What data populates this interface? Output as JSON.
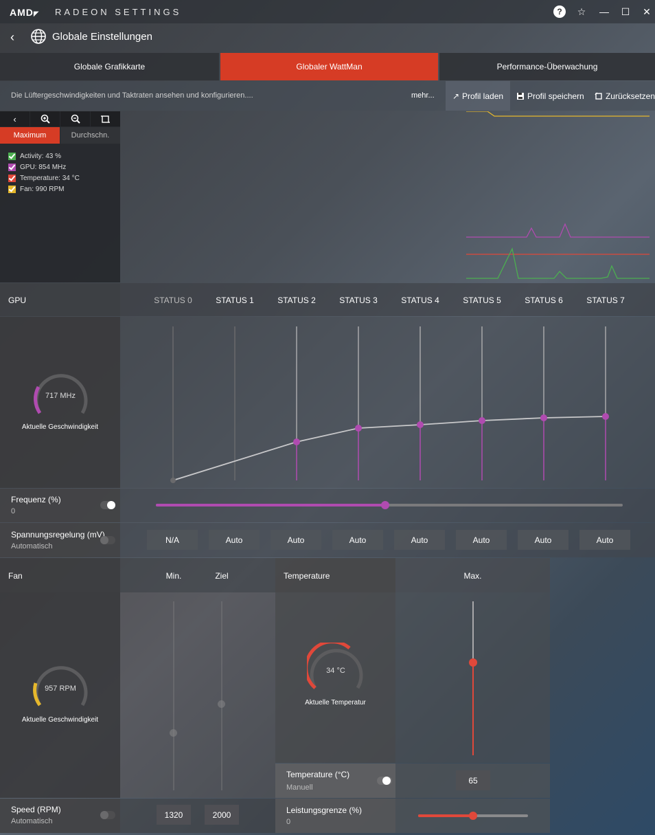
{
  "app": {
    "brand": "AMD",
    "brand_mark": "◤",
    "title": "RADEON SETTINGS"
  },
  "header": {
    "title": "Globale Einstellungen"
  },
  "tabs": [
    {
      "label": "Globale Grafikkarte",
      "active": false
    },
    {
      "label": "Globaler WattMan",
      "active": true
    },
    {
      "label": "Performance-Überwachung",
      "active": false
    }
  ],
  "toolbar": {
    "description": "Die Lüftergeschwindigkeiten und Taktraten ansehen und konfigurieren....",
    "more": "mehr...",
    "load_profile": "Profil laden",
    "save_profile": "Profil speichern",
    "reset": "Zurücksetzen"
  },
  "monitor": {
    "tab_max": "Maximum",
    "tab_avg": "Durchschn.",
    "legend": [
      {
        "label": "Activity: 43 %",
        "color": "#4caf50"
      },
      {
        "label": "GPU: 854 MHz",
        "color": "#b04bb0"
      },
      {
        "label": "Temperature: 34 °C",
        "color": "#e0483a"
      },
      {
        "label": "Fan: 990 RPM",
        "color": "#e6b82c"
      }
    ]
  },
  "gpu": {
    "label": "GPU",
    "states": [
      "STATUS 0",
      "STATUS 1",
      "STATUS 2",
      "STATUS 3",
      "STATUS 4",
      "STATUS 5",
      "STATUS 6",
      "STATUS 7"
    ],
    "gauge_value": "717 MHz",
    "gauge_caption": "Aktuelle Geschwindigkeit",
    "frequency_label": "Frequenz (%)",
    "frequency_value": "0",
    "voltage_label": "Spannungsregelung (mV)",
    "voltage_mode": "Automatisch",
    "voltages": [
      "N/A",
      "Auto",
      "Auto",
      "Auto",
      "Auto",
      "Auto",
      "Auto",
      "Auto"
    ]
  },
  "fan": {
    "label": "Fan",
    "min_label": "Min.",
    "target_label": "Ziel",
    "gauge_value": "957 RPM",
    "gauge_caption": "Aktuelle Geschwindigkeit",
    "speed_label": "Speed (RPM)",
    "speed_mode": "Automatisch",
    "min_value": "1320",
    "target_value": "2000"
  },
  "temperature": {
    "label": "Temperature",
    "max_label": "Max.",
    "gauge_value": "34 °C",
    "gauge_caption": "Aktuelle Temperatur",
    "temp_label": "Temperature (°C)",
    "temp_mode": "Manuell",
    "max_value": "65",
    "power_label": "Leistungsgrenze (%)",
    "power_value": "0"
  },
  "colors": {
    "accent": "#d63c25",
    "gpu_magenta": "#b04bb0",
    "fan_yellow": "#e6b82c",
    "temp_red": "#e0483a"
  }
}
